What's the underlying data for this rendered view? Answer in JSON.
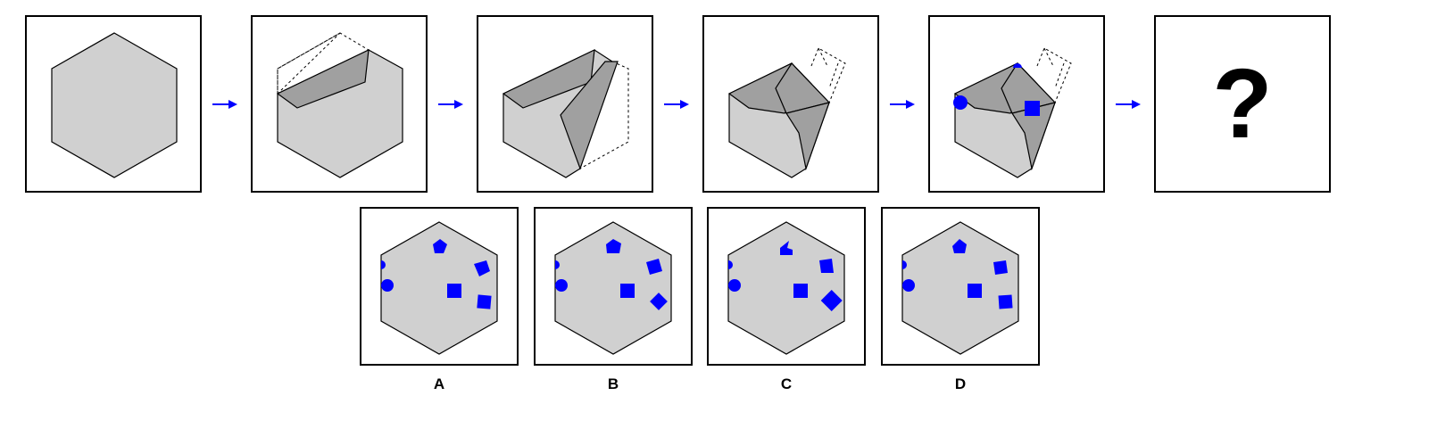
{
  "sequence": {
    "question_mark": "?"
  },
  "options": [
    {
      "label": "A"
    },
    {
      "label": "B"
    },
    {
      "label": "C"
    },
    {
      "label": "D"
    }
  ],
  "colors": {
    "paper_fill": "#d0d0d0",
    "fold_fill": "#a0a0a0",
    "outline": "#000000",
    "mark_blue": "#0000ff"
  }
}
